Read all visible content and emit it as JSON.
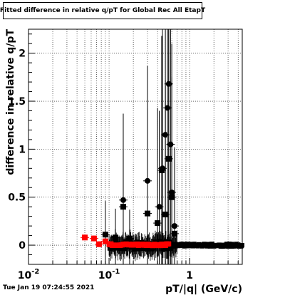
{
  "chart_data": {
    "type": "scatter",
    "title": "Fitted difference in relative q/pT for Global Rec All EtapT",
    "xlabel": "pT/|q| (GeV/c)",
    "ylabel": "difference in relative q/pT",
    "xscale": "log",
    "xlim": [
      0.01,
      4.5
    ],
    "ylim": [
      -0.2,
      2.25
    ],
    "x_ticks": [
      {
        "value": 0.01,
        "label": "10"
      },
      {
        "value": 0.1,
        "label": "10"
      },
      {
        "value": 1,
        "label": "1"
      }
    ],
    "x_tick_exponent": "-2|-1",
    "y_ticks": [
      {
        "value": 0,
        "label": "0"
      },
      {
        "value": 0.5,
        "label": "0.5"
      },
      {
        "value": 1,
        "label": "1"
      },
      {
        "value": 1.5,
        "label": "1.5"
      },
      {
        "value": 2,
        "label": "2"
      }
    ],
    "grid": true,
    "series": [
      {
        "marker": "square",
        "color": "#000000",
        "points": [
          {
            "x": 0.09,
            "y": 0.11,
            "err": 0.35
          },
          {
            "x": 0.12,
            "y": 0.08,
            "err": 0.3
          },
          {
            "x": 0.15,
            "y": 0.4,
            "err": 0.6
          },
          {
            "x": 0.18,
            "y": 0.07,
            "err": 0.3
          },
          {
            "x": 0.3,
            "y": 0.33,
            "err": 1.1
          },
          {
            "x": 0.4,
            "y": 0.23,
            "err": 1.2
          },
          {
            "x": 0.45,
            "y": 0.78,
            "err": 1.4
          },
          {
            "x": 0.5,
            "y": 0.32,
            "err": 1.4
          },
          {
            "x": 0.55,
            "y": 0.9,
            "err": 1.8
          },
          {
            "x": 0.6,
            "y": 0.5,
            "err": 1.6
          },
          {
            "x": 0.65,
            "y": 0.12,
            "err": 0.9
          }
        ]
      },
      {
        "marker": "circle",
        "color": "#000000",
        "points": [
          {
            "x": 0.15,
            "y": 0.47,
            "err": 0.9
          },
          {
            "x": 0.3,
            "y": 0.67,
            "err": 1.2
          },
          {
            "x": 0.42,
            "y": 0.4,
            "err": 1.0
          },
          {
            "x": 0.46,
            "y": 0.8,
            "err": 1.5
          },
          {
            "x": 0.5,
            "y": 1.15,
            "err": 1.7
          },
          {
            "x": 0.53,
            "y": 1.43,
            "err": 1.8
          },
          {
            "x": 0.55,
            "y": 1.68,
            "err": 1.9
          },
          {
            "x": 0.58,
            "y": 1.05,
            "err": 1.6
          },
          {
            "x": 0.6,
            "y": 0.55,
            "err": 1.2
          },
          {
            "x": 0.65,
            "y": 0.2,
            "err": 0.8
          }
        ]
      },
      {
        "marker": "square",
        "color": "#ff0000",
        "points": [
          {
            "x": 0.05,
            "y": 0.08,
            "err": 0.03
          },
          {
            "x": 0.065,
            "y": 0.07,
            "err": 0.03
          },
          {
            "x": 0.075,
            "y": 0.01,
            "err": 0.03
          },
          {
            "x": 0.09,
            "y": 0.04,
            "err": 0.03
          }
        ]
      }
    ]
  },
  "footer": {
    "timestamp": "Tue Jan 19 07:24:55 2021"
  }
}
